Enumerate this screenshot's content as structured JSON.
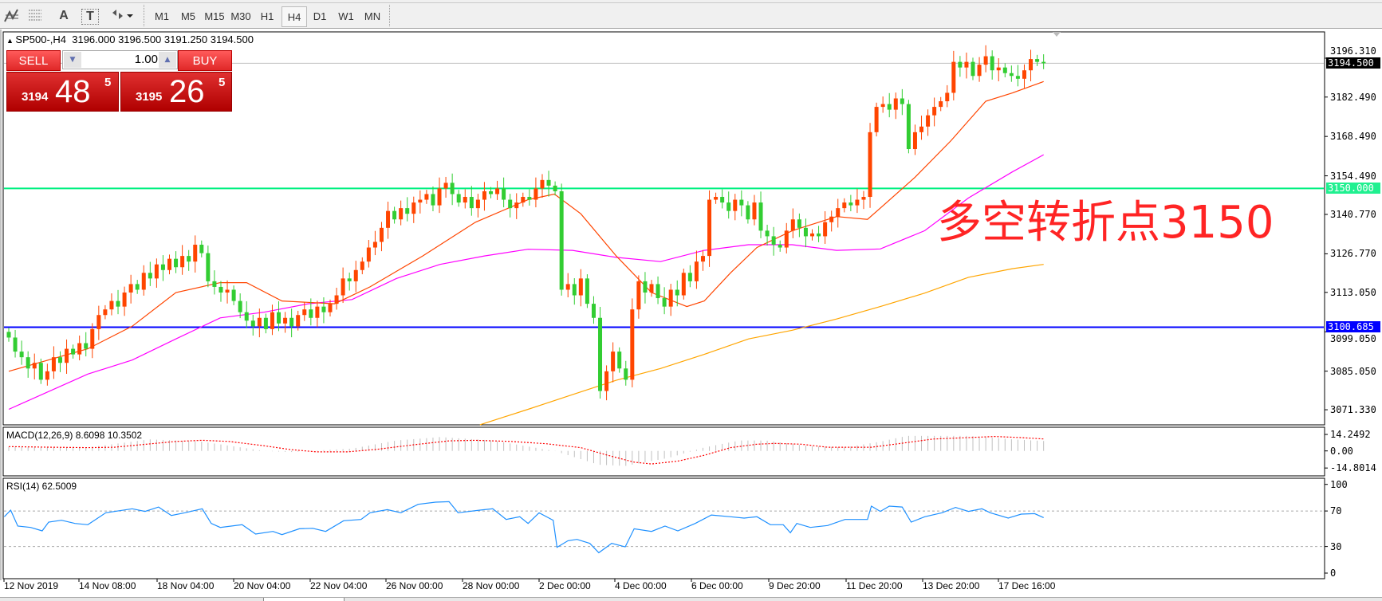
{
  "toolbar": {
    "icons": [
      "elliott-wave-icon",
      "fibonacci-icon",
      "text-icon",
      "text-label-icon",
      "arrows-icon"
    ],
    "text_icon_label": "A",
    "label_icon_label": "T",
    "timeframes": [
      "M1",
      "M5",
      "M15",
      "M30",
      "H1",
      "H4",
      "D1",
      "W1",
      "MN"
    ],
    "active_timeframe": "H4"
  },
  "chart": {
    "header": "SP500-,H4  3196.000 3196.500 3191.250 3194.500",
    "annotation": "多空转折点3150",
    "annotation_color": "#ff2424"
  },
  "trade_panel": {
    "sell_label": "SELL",
    "buy_label": "BUY",
    "lot": "1.00",
    "sell_small": "3194",
    "sell_big": "48",
    "sell_sup": "5",
    "buy_small": "3195",
    "buy_big": "26",
    "buy_sup": "5"
  },
  "price_axis": [
    "3196.310",
    "3182.490",
    "3168.490",
    "3154.490",
    "3140.770",
    "3126.770",
    "3113.050",
    "3099.050",
    "3085.050",
    "3071.330"
  ],
  "price_axis_values": [
    3196.31,
    3182.49,
    3168.49,
    3154.49,
    3140.77,
    3126.77,
    3113.05,
    3099.05,
    3085.05,
    3071.33
  ],
  "hlines": [
    {
      "label": "3194.500",
      "value": 3194.5,
      "color": "#c0c0c0",
      "box": "#000000"
    },
    {
      "label": "3150.000",
      "value": 3150.0,
      "color": "#00f080",
      "box": "#20f090"
    },
    {
      "label": "3100.685",
      "value": 3100.685,
      "color": "#0000ff",
      "box": "#0000ff"
    }
  ],
  "macd": {
    "title": "MACD(12,26,9) 8.6098 10.3502",
    "axis": [
      "14.2492",
      "0.00",
      "-14.8014"
    ],
    "axis_values": [
      14.2492,
      0,
      -14.8014
    ]
  },
  "rsi": {
    "title": "RSI(14) 62.5009",
    "axis": [
      "100",
      "70",
      "30",
      "0"
    ],
    "axis_values": [
      100,
      70,
      30,
      0
    ]
  },
  "dates": [
    "12 Nov 2019",
    "14 Nov 08:00",
    "18 Nov 04:00",
    "20 Nov 04:00",
    "22 Nov 04:00",
    "26 Nov 00:00",
    "28 Nov 00:00",
    "2 Dec 00:00",
    "4 Dec 00:00",
    "6 Dec 00:00",
    "9 Dec 20:00",
    "11 Dec 20:00",
    "13 Dec 20:00",
    "17 Dec 16:00"
  ],
  "chart_data": {
    "type": "candlestick",
    "colors": {
      "up": "#ff4500",
      "down": "#32cd32",
      "ma_fast": "#ff4500",
      "ma_mid": "#ff00ff",
      "ma_slow": "#ffa500",
      "macd_hist": "#c0c0c0",
      "macd_signal": "#ff0000",
      "rsi": "#1e90ff"
    },
    "ylim": [
      3071.33,
      3196.31
    ],
    "close": [
      3097,
      3092,
      3090,
      3086,
      3088,
      3082,
      3085,
      3090,
      3088,
      3093,
      3091,
      3095,
      3093,
      3100,
      3105,
      3107,
      3110,
      3108,
      3113,
      3116,
      3114,
      3120,
      3118,
      3123,
      3121,
      3125,
      3122,
      3126,
      3124,
      3130,
      3127,
      3117,
      3115,
      3113,
      3114,
      3110,
      3106,
      3103,
      3101,
      3104,
      3100,
      3106,
      3102,
      3104,
      3101,
      3105,
      3107,
      3104,
      3108,
      3106,
      3109,
      3112,
      3118,
      3117,
      3121,
      3124,
      3129,
      3131,
      3136,
      3142,
      3139,
      3143,
      3141,
      3145,
      3146,
      3148,
      3144,
      3150,
      3152,
      3148,
      3145,
      3147,
      3143,
      3146,
      3149,
      3148,
      3150,
      3146,
      3143,
      3145,
      3147,
      3146,
      3150,
      3153,
      3151,
      3149,
      3114,
      3116,
      3112,
      3118,
      3109,
      3104,
      3078,
      3085,
      3092,
      3086,
      3082,
      3107,
      3117,
      3113,
      3116,
      3111,
      3108,
      3114,
      3112,
      3120,
      3117,
      3124,
      3126,
      3146,
      3147,
      3145,
      3142,
      3146,
      3144,
      3139,
      3145,
      3135,
      3133,
      3130,
      3129,
      3135,
      3139,
      3136,
      3133,
      3134,
      3133,
      3138,
      3140,
      3143,
      3145,
      3144,
      3146,
      3147,
      3170,
      3179,
      3180,
      3178,
      3182,
      3180,
      3164,
      3170,
      3172,
      3176,
      3179,
      3181,
      3184,
      3195,
      3193,
      3195,
      3190,
      3194,
      3197,
      3192,
      3193,
      3191,
      3190,
      3189,
      3192,
      3196,
      3195,
      3194.5
    ],
    "ma_fast": [
      [
        0,
        3085
      ],
      [
        12.3,
        3093
      ],
      [
        19.2,
        3101
      ],
      [
        26,
        3113
      ],
      [
        32.9,
        3116.5
      ],
      [
        37,
        3116.5
      ],
      [
        42.5,
        3110
      ],
      [
        50.7,
        3109
      ],
      [
        56.2,
        3115
      ],
      [
        64.4,
        3126
      ],
      [
        72.6,
        3138
      ],
      [
        80.8,
        3146
      ],
      [
        84.9,
        3148
      ],
      [
        89,
        3141
      ],
      [
        94.5,
        3126
      ],
      [
        100,
        3113
      ],
      [
        105.5,
        3108
      ],
      [
        108.2,
        3110
      ],
      [
        112.3,
        3120
      ],
      [
        116.4,
        3129
      ],
      [
        121.9,
        3135
      ],
      [
        128.8,
        3140
      ],
      [
        133.6,
        3139
      ],
      [
        135.6,
        3143
      ],
      [
        141,
        3154
      ],
      [
        146.6,
        3167
      ],
      [
        152,
        3181
      ],
      [
        156.2,
        3184
      ],
      [
        161,
        3188
      ]
    ],
    "ma_mid": [
      [
        0,
        3071.5
      ],
      [
        12.3,
        3084
      ],
      [
        19.2,
        3089
      ],
      [
        26,
        3096.5
      ],
      [
        32.9,
        3104
      ],
      [
        39.7,
        3106
      ],
      [
        46.6,
        3109
      ],
      [
        53.4,
        3110.5
      ],
      [
        60.3,
        3118
      ],
      [
        67.1,
        3123
      ],
      [
        74,
        3126
      ],
      [
        80.8,
        3128.4
      ],
      [
        87.7,
        3128
      ],
      [
        94.5,
        3125.5
      ],
      [
        101.4,
        3124
      ],
      [
        108.2,
        3128
      ],
      [
        115.1,
        3130
      ],
      [
        121.9,
        3130
      ],
      [
        128.8,
        3128
      ],
      [
        135.6,
        3128.5
      ],
      [
        142.5,
        3135
      ],
      [
        149.3,
        3146.6
      ],
      [
        156.2,
        3156
      ],
      [
        161,
        3162
      ]
    ],
    "ma_slow": [
      [
        73.3,
        3066
      ],
      [
        80.8,
        3071.5
      ],
      [
        87.7,
        3076.7
      ],
      [
        94.5,
        3081.8
      ],
      [
        101.4,
        3086
      ],
      [
        108.2,
        3091
      ],
      [
        115.1,
        3096.5
      ],
      [
        121.9,
        3099.6
      ],
      [
        128.8,
        3103.6
      ],
      [
        135.6,
        3108
      ],
      [
        142.5,
        3112.8
      ],
      [
        149.3,
        3118.4
      ],
      [
        156.2,
        3121.5
      ],
      [
        161,
        3123
      ]
    ],
    "macd_hist": [
      [
        0,
        3.7
      ],
      [
        12.3,
        3
      ],
      [
        21.9,
        10
      ],
      [
        30.1,
        8
      ],
      [
        39.7,
        0
      ],
      [
        43.8,
        -1
      ],
      [
        53.4,
        2
      ],
      [
        60.3,
        9
      ],
      [
        67.1,
        12
      ],
      [
        75.3,
        9
      ],
      [
        84.9,
        0
      ],
      [
        91.8,
        -12
      ],
      [
        95.9,
        -13
      ],
      [
        102.7,
        -6
      ],
      [
        108.2,
        3
      ],
      [
        113.7,
        9
      ],
      [
        117.8,
        9
      ],
      [
        124.7,
        4
      ],
      [
        130.1,
        3
      ],
      [
        135.6,
        8
      ],
      [
        139.7,
        13
      ],
      [
        149.3,
        13
      ],
      [
        156.2,
        10
      ],
      [
        161,
        8.6098
      ]
    ],
    "macd_signal": [
      [
        0,
        3.7
      ],
      [
        6.8,
        3.2
      ],
      [
        12.3,
        2.8
      ],
      [
        16.4,
        3.2
      ],
      [
        20.5,
        5.3
      ],
      [
        26,
        8.2
      ],
      [
        30.1,
        9.2
      ],
      [
        34.2,
        8.2
      ],
      [
        39.7,
        4.5
      ],
      [
        43.8,
        1.2
      ],
      [
        47.9,
        -0.8
      ],
      [
        52.7,
        -0.8
      ],
      [
        57.5,
        1.5
      ],
      [
        63,
        5.3
      ],
      [
        68.5,
        8.7
      ],
      [
        72.6,
        9.2
      ],
      [
        78.1,
        8.2
      ],
      [
        83.6,
        6.2
      ],
      [
        89,
        2.8
      ],
      [
        93.2,
        -3.8
      ],
      [
        97.3,
        -9.7
      ],
      [
        100,
        -11.3
      ],
      [
        104.1,
        -8.8
      ],
      [
        108.2,
        -3.8
      ],
      [
        112.3,
        2.8
      ],
      [
        116.4,
        5.8
      ],
      [
        119.2,
        6.5
      ],
      [
        123.3,
        5.8
      ],
      [
        127.4,
        3.2
      ],
      [
        134.2,
        3.2
      ],
      [
        138.4,
        6.2
      ],
      [
        143.8,
        10.3
      ],
      [
        149.3,
        11.5
      ],
      [
        153.4,
        12.5
      ],
      [
        157.5,
        11.5
      ],
      [
        161,
        10.3502
      ]
    ],
    "rsi": [
      [
        -0.7,
        63.5
      ],
      [
        0.3,
        71
      ],
      [
        1.4,
        53
      ],
      [
        3.4,
        51.5
      ],
      [
        5.2,
        47.6
      ],
      [
        6.2,
        57.5
      ],
      [
        8.2,
        59.6
      ],
      [
        10.3,
        56
      ],
      [
        12.3,
        54.5
      ],
      [
        15.1,
        68
      ],
      [
        19.2,
        72.5
      ],
      [
        21.2,
        69.5
      ],
      [
        23.3,
        74.5
      ],
      [
        25.3,
        65
      ],
      [
        27.4,
        68
      ],
      [
        30.1,
        72.5
      ],
      [
        31.5,
        56
      ],
      [
        32.9,
        51.5
      ],
      [
        36.3,
        54.5
      ],
      [
        38.4,
        44
      ],
      [
        41.1,
        47
      ],
      [
        42.5,
        43.4
      ],
      [
        45.2,
        50
      ],
      [
        47.3,
        50.5
      ],
      [
        49.3,
        47
      ],
      [
        52.1,
        59
      ],
      [
        54.8,
        60.5
      ],
      [
        56.2,
        68
      ],
      [
        58.9,
        71.5
      ],
      [
        61,
        68
      ],
      [
        63.7,
        77.5
      ],
      [
        66.4,
        80
      ],
      [
        68.5,
        80.5
      ],
      [
        69.9,
        68
      ],
      [
        73.3,
        71
      ],
      [
        75.3,
        72.5
      ],
      [
        77.4,
        60.5
      ],
      [
        79.5,
        63.5
      ],
      [
        80.8,
        56
      ],
      [
        82.5,
        68
      ],
      [
        84.7,
        59.6
      ],
      [
        85.3,
        29
      ],
      [
        87,
        36.5
      ],
      [
        88.4,
        38
      ],
      [
        90.4,
        33.5
      ],
      [
        91.8,
        23
      ],
      [
        93.8,
        33.5
      ],
      [
        95.9,
        29.6
      ],
      [
        97.3,
        50
      ],
      [
        100,
        47
      ],
      [
        102.1,
        53
      ],
      [
        104.1,
        47.6
      ],
      [
        106.8,
        56
      ],
      [
        109.3,
        65.5
      ],
      [
        112.3,
        63.5
      ],
      [
        114.4,
        62
      ],
      [
        116.4,
        63.5
      ],
      [
        118.5,
        54.5
      ],
      [
        120.5,
        54.5
      ],
      [
        121.6,
        45.5
      ],
      [
        122.6,
        56
      ],
      [
        124.7,
        51.5
      ],
      [
        127.4,
        53.6
      ],
      [
        130.1,
        60.5
      ],
      [
        133.6,
        60.5
      ],
      [
        134.2,
        75.5
      ],
      [
        135.6,
        69.5
      ],
      [
        137,
        75.5
      ],
      [
        139,
        74.5
      ],
      [
        140.4,
        57.5
      ],
      [
        142.5,
        63.5
      ],
      [
        145.2,
        68
      ],
      [
        147.3,
        74
      ],
      [
        149.3,
        69.5
      ],
      [
        151.4,
        72.5
      ],
      [
        152.7,
        68
      ],
      [
        155.5,
        62
      ],
      [
        157.5,
        66.5
      ],
      [
        159.6,
        67
      ],
      [
        161,
        62.5
      ]
    ]
  }
}
